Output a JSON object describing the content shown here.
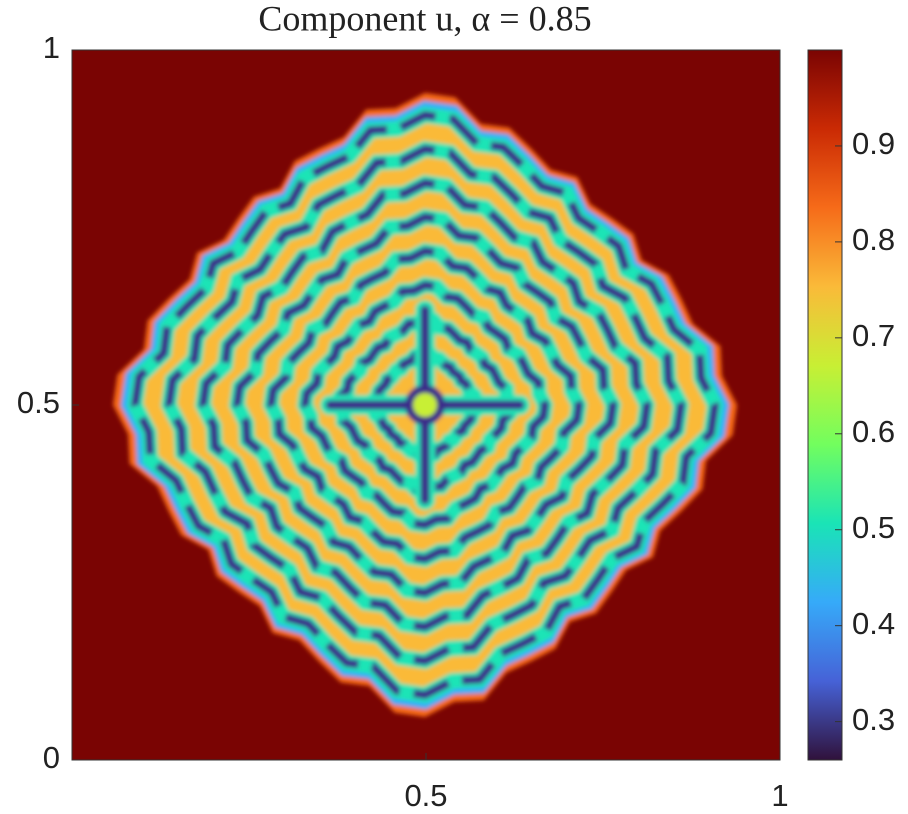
{
  "chart_data": {
    "type": "heatmap",
    "title": "Component u,    α = 0.85",
    "xlim": [
      0,
      1
    ],
    "xticks": [
      0.5,
      1
    ],
    "ylim": [
      0,
      1
    ],
    "yticks": [
      0,
      0.5,
      1
    ],
    "colorbar": {
      "clim": [
        0.26,
        1.0
      ],
      "ticks": [
        0.3,
        0.4,
        0.5,
        0.6,
        0.7,
        0.8,
        0.9
      ],
      "colormap": [
        "#30123b",
        "#4662d7",
        "#36aaf9",
        "#1ae4b6",
        "#72fe5e",
        "#c8ef34",
        "#faba39",
        "#f66b19",
        "#ca2a04",
        "#7a0403"
      ]
    }
  }
}
